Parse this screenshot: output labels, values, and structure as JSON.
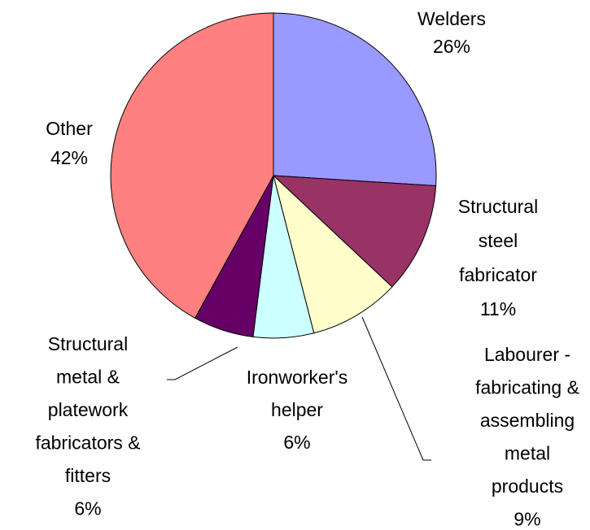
{
  "chart_data": {
    "type": "pie",
    "categories": [
      "Welders",
      "Structural steel fabricator",
      "Labourer - fabricating & assembling metal products",
      "Ironworker's helper",
      "Structural metal & platework fabricators & fitters",
      "Other"
    ],
    "values": [
      26,
      11,
      9,
      6,
      6,
      42
    ],
    "value_labels": [
      "26%",
      "11%",
      "9%",
      "6%",
      "6%",
      "42%"
    ],
    "colors": [
      "#9999ff",
      "#993366",
      "#ffffcc",
      "#ccffff",
      "#660066",
      "#ff8080"
    ]
  }
}
